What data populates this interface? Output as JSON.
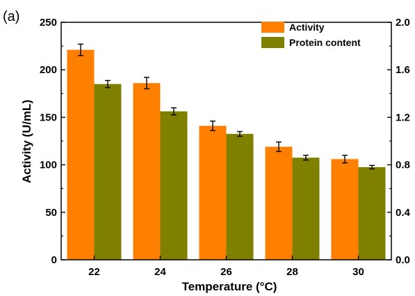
{
  "panel_label": "(a)",
  "chart_data": {
    "type": "bar",
    "title": "",
    "xlabel": "Temperature (°C)",
    "ylabel": "Activity (U/mL)",
    "y2label": "",
    "categories": [
      "22",
      "24",
      "26",
      "28",
      "30"
    ],
    "ylim": [
      0,
      250
    ],
    "y2lim": [
      0,
      2.0
    ],
    "yticks": [
      "0",
      "50",
      "100",
      "150",
      "200",
      "250"
    ],
    "y2ticks": [
      "0.0",
      "0.4",
      "0.8",
      "1.2",
      "1.6",
      "2.0"
    ],
    "legend_position": "top-right",
    "grid": false,
    "series": [
      {
        "name": "Activity",
        "axis": "left",
        "color": "#ff8000",
        "values": [
          221,
          186,
          141,
          119,
          106
        ],
        "errors": [
          6,
          6,
          5,
          5,
          4
        ]
      },
      {
        "name": "Protein content",
        "axis": "right",
        "color": "#808000",
        "values": [
          1.48,
          1.25,
          1.06,
          0.86,
          0.78
        ],
        "errors": [
          0.03,
          0.03,
          0.02,
          0.02,
          0.015
        ]
      }
    ]
  }
}
